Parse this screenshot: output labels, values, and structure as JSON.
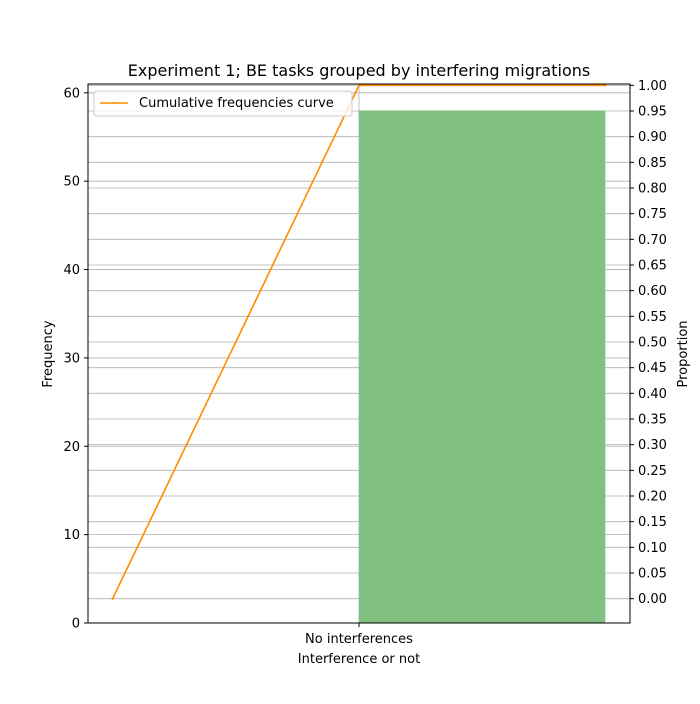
{
  "chart_data": {
    "type": "bar",
    "title": "Experiment 1; BE tasks grouped by interfering migrations",
    "xlabel": "Interference or not",
    "ylabel": "Frequency",
    "y2label": "Proportion",
    "categories": [
      "No interferences"
    ],
    "values": [
      58
    ],
    "bar_color": "#80c080",
    "ylim": [
      0,
      61
    ],
    "yticks": [
      0,
      10,
      20,
      30,
      40,
      50,
      60
    ],
    "y2lim": [
      -0.0474,
      1.0026
    ],
    "y2ticks": [
      "0.00",
      "0.05",
      "0.10",
      "0.15",
      "0.20",
      "0.25",
      "0.30",
      "0.35",
      "0.40",
      "0.45",
      "0.50",
      "0.55",
      "0.60",
      "0.65",
      "0.70",
      "0.75",
      "0.80",
      "0.85",
      "0.90",
      "0.95",
      "1.00"
    ],
    "grid": "horizontal",
    "cumulative_curve": {
      "name": "Cumulative frequencies curve",
      "color": "#ff8c00",
      "points": [
        {
          "x": "start",
          "y": 0
        },
        {
          "x": "No interferences",
          "y": 1
        },
        {
          "x": "end",
          "y": 1
        }
      ]
    },
    "legend": {
      "placement": "top-left",
      "entries": [
        "Cumulative frequencies curve"
      ]
    }
  }
}
